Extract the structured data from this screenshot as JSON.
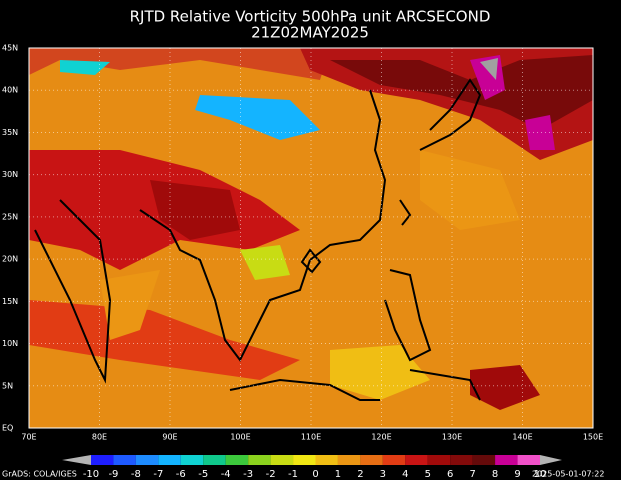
{
  "header": {
    "title": "RJTD Relative Vorticity 500hPa unit ARCSECOND",
    "subtitle": "21Z02MAY2025"
  },
  "map": {
    "lat_labels": [
      "45N",
      "40N",
      "35N",
      "30N",
      "25N",
      "20N",
      "15N",
      "10N",
      "5N",
      "EQ"
    ],
    "lon_labels": [
      "70E",
      "80E",
      "90E",
      "100E",
      "110E",
      "120E",
      "130E",
      "140E",
      "150E"
    ]
  },
  "colorbar": {
    "labels": [
      "-10",
      "-9",
      "-8",
      "-7",
      "-6",
      "-5",
      "-4",
      "-3",
      "-2",
      "-1",
      "0",
      "1",
      "2",
      "3",
      "4",
      "5",
      "6",
      "7",
      "8",
      "9",
      "10"
    ],
    "colors": [
      "#1e1eff",
      "#1e5aff",
      "#1e8cff",
      "#14b4ff",
      "#10d2d2",
      "#10c88c",
      "#3cc83c",
      "#8cd21e",
      "#c8dc14",
      "#f0e614",
      "#f0be14",
      "#eb9614",
      "#e66e14",
      "#e13c14",
      "#c81414",
      "#a00a0a",
      "#820a0a",
      "#640a0a",
      "#c80096",
      "#f050c8"
    ]
  },
  "footer": {
    "credit": "GrADS: COLA/IGES",
    "timestamp": "2025-05-01-07:22"
  }
}
